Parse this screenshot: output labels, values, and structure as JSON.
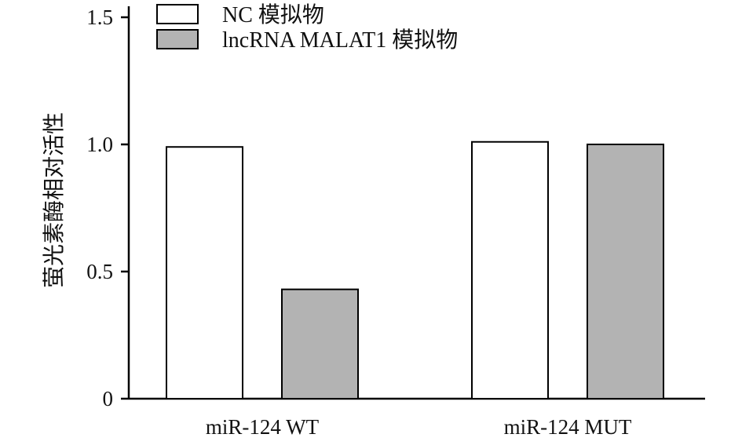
{
  "chart_data": {
    "type": "bar",
    "categories": [
      "miR-124 WT",
      "miR-124 MUT"
    ],
    "series": [
      {
        "name": "NC 模拟物",
        "values": [
          0.99,
          1.01
        ],
        "color": "#ffffff"
      },
      {
        "name": "lncRNA MALAT1 模拟物",
        "values": [
          0.43,
          1.0
        ],
        "color": "#b3b3b3"
      }
    ],
    "ylabel": "萤光素酶相对活性",
    "xlabel": "",
    "ylim": [
      0,
      1.5
    ],
    "yticks": [
      0,
      0.5,
      1.0,
      1.5
    ],
    "ytick_labels": [
      "0",
      "0.5",
      "1.0",
      "1.5"
    ],
    "grid": false,
    "legend": "top-left"
  }
}
